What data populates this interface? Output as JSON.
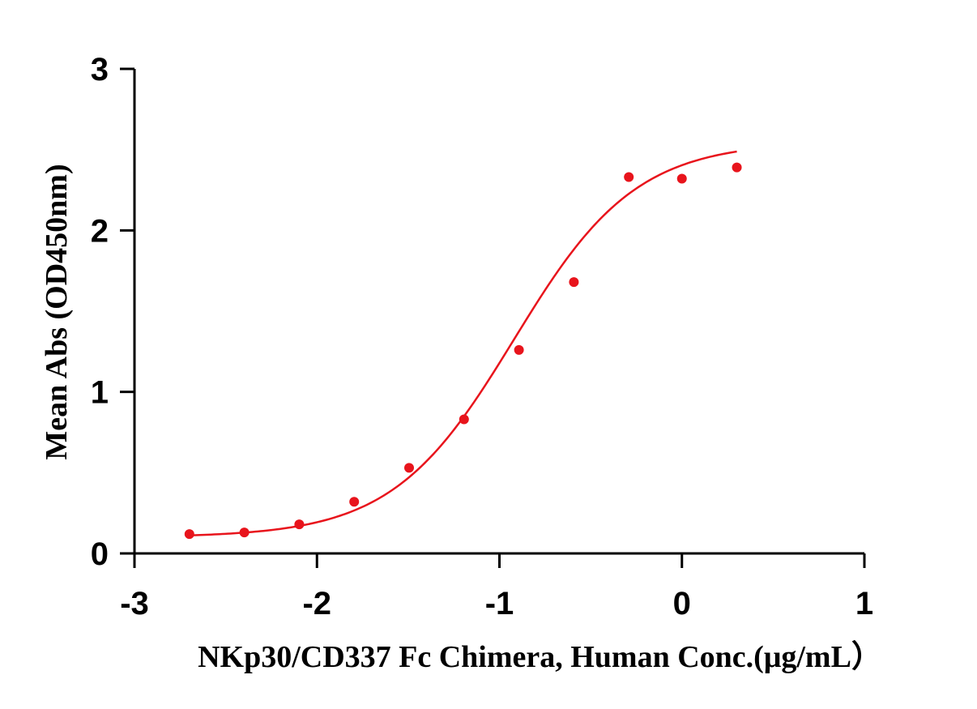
{
  "chart_data": {
    "type": "scatter",
    "title": "",
    "xlabel": "NKp30/CD337 Fc Chimera, Human Conc.(μg/mL）",
    "ylabel": "Mean Abs (OD450nm)",
    "xlim": [
      -3,
      1
    ],
    "ylim": [
      0,
      3
    ],
    "x_ticks": [
      -3,
      -2,
      -1,
      0,
      1
    ],
    "x_tick_labels": [
      "-3",
      "-2",
      "-1",
      "0",
      "1"
    ],
    "y_ticks": [
      0,
      1,
      2,
      3
    ],
    "y_tick_labels": [
      "0",
      "1",
      "2",
      "3"
    ],
    "grid": false,
    "legend": "none",
    "series": [
      {
        "kind": "points",
        "color": "#e8141c",
        "x": [
          -2.699,
          -2.398,
          -2.097,
          -1.796,
          -1.495,
          -1.194,
          -0.893,
          -0.592,
          -0.291,
          0.0,
          0.301
        ],
        "y": [
          0.12,
          0.13,
          0.18,
          0.32,
          0.53,
          0.83,
          1.26,
          1.68,
          2.33,
          2.32,
          2.39
        ]
      },
      {
        "kind": "fit-curve",
        "color": "#e8141c",
        "x_range": [
          -2.699,
          0.301
        ],
        "bottom": 0.1,
        "top": 2.55,
        "log_ec50": -0.92,
        "hill": 1.3
      }
    ]
  }
}
